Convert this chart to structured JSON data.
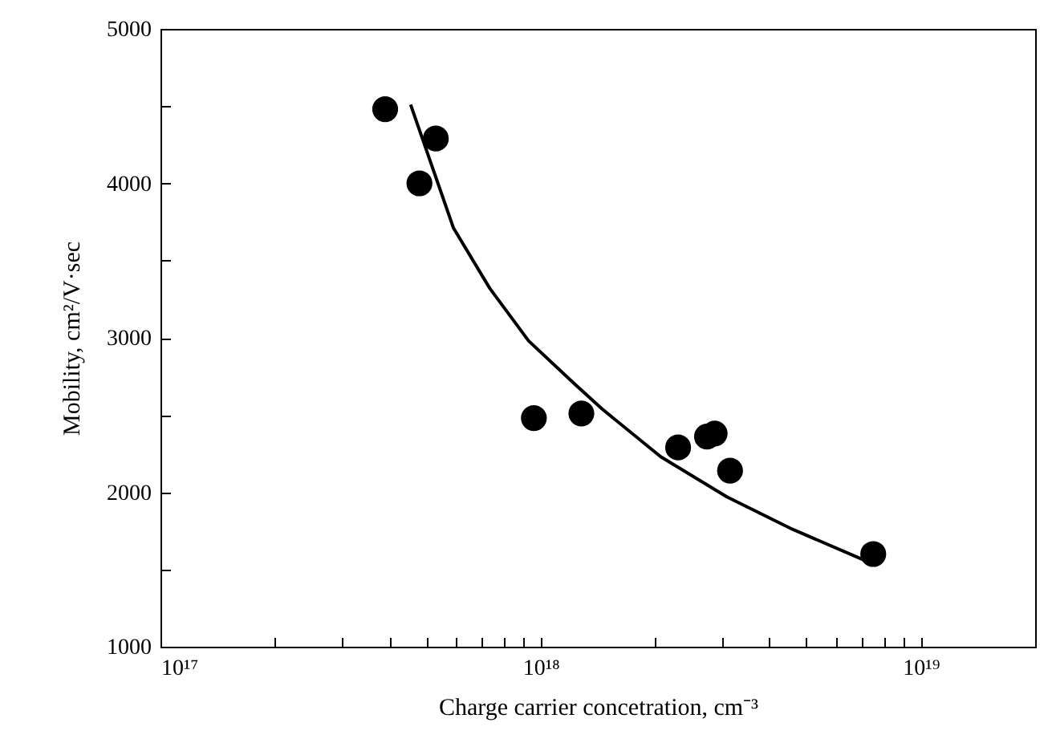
{
  "chart_data": {
    "type": "scatter",
    "xlabel": "Charge carrier concetration, cm⁻³",
    "ylabel": "Mobility, cm²/V·sec",
    "log": "x",
    "grid": false,
    "xlim": [
      1e+17,
      2e+19
    ],
    "ylim": [
      1000,
      5000
    ],
    "xticks": [
      {
        "value": 1e+17,
        "label": "10¹⁷"
      },
      {
        "value": 2e+17,
        "label": null
      },
      {
        "value": 3e+17,
        "label": null
      },
      {
        "value": 4e+17,
        "label": null
      },
      {
        "value": 5e+17,
        "label": null
      },
      {
        "value": 6e+17,
        "label": null
      },
      {
        "value": 7e+17,
        "label": null
      },
      {
        "value": 8e+17,
        "label": null
      },
      {
        "value": 9e+17,
        "label": null
      },
      {
        "value": 1e+18,
        "label": "10¹⁸"
      },
      {
        "value": 2e+18,
        "label": null
      },
      {
        "value": 3e+18,
        "label": null
      },
      {
        "value": 4e+18,
        "label": null
      },
      {
        "value": 5e+18,
        "label": null
      },
      {
        "value": 6e+18,
        "label": null
      },
      {
        "value": 7e+18,
        "label": null
      },
      {
        "value": 8e+18,
        "label": null
      },
      {
        "value": 9e+18,
        "label": null
      },
      {
        "value": 1e+19,
        "label": "10¹⁹"
      }
    ],
    "yticks": [
      1000,
      {
        "value": 1500,
        "label": null
      },
      2000,
      {
        "value": 2500,
        "label": null
      },
      3000,
      {
        "value": 3500,
        "label": null
      },
      4000,
      {
        "value": 4500,
        "label": null
      },
      5000
    ],
    "series": [
      {
        "marker": "circle",
        "color": "#000000",
        "x": [
          3.9e+17,
          4.8e+17,
          5.3e+17,
          9.6e+17,
          1.28e+18,
          2.3e+18,
          2.74e+18,
          2.87e+18,
          3.15e+18,
          7.5e+18
        ],
        "values": [
          4480,
          4000,
          4290,
          2480,
          2510,
          2290,
          2360,
          2380,
          2140,
          1600
        ]
      },
      {
        "type": "line",
        "marker": "none",
        "color": "#000000",
        "x": [
          4.55e+17,
          5.9e+17,
          7.35e+17,
          9.3e+17,
          1.23e+18,
          1.45e+18,
          2.07e+18,
          3.09e+18,
          4.6e+18,
          7.1e+18
        ],
        "values": [
          4510,
          3710,
          3320,
          2980,
          2700,
          2540,
          2230,
          1970,
          1760,
          1560
        ]
      }
    ]
  }
}
